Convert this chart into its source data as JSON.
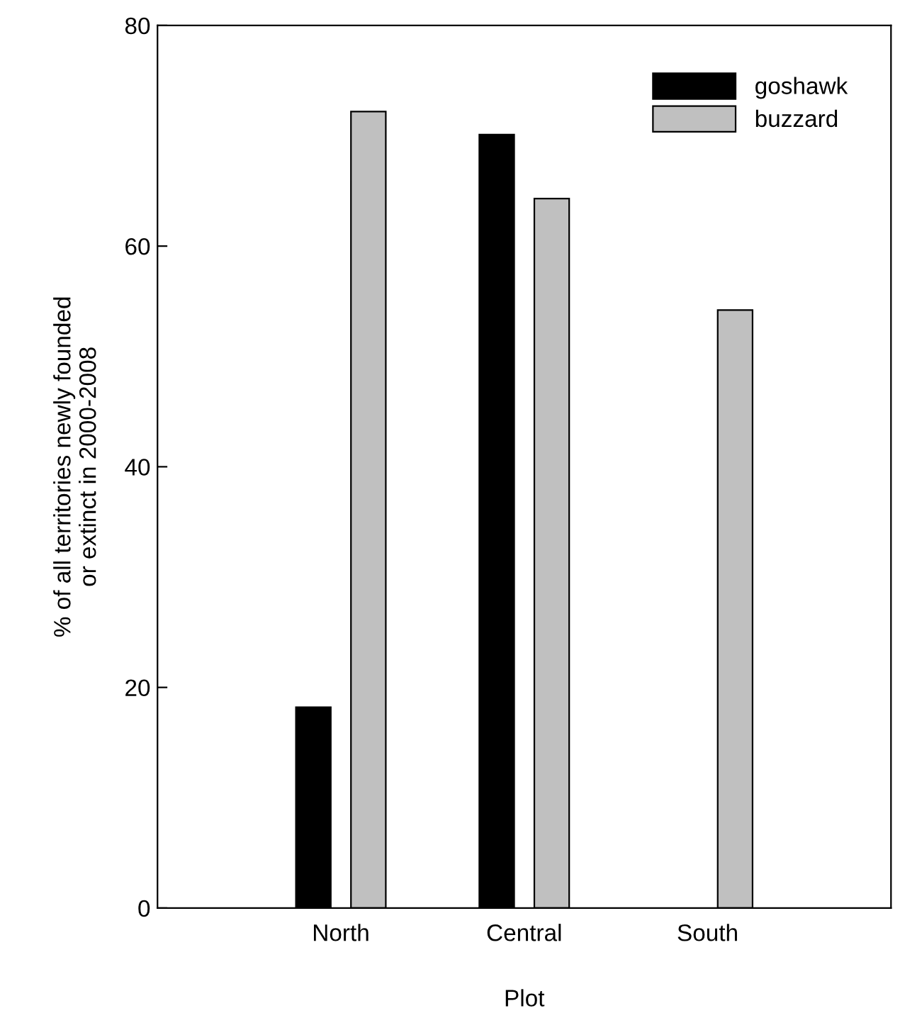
{
  "chart_data": {
    "type": "bar",
    "xlabel": "Plot",
    "ylabel": "% of all territories newly founded\nor extinct in 2000-2008",
    "categories": [
      "North",
      "Central",
      "South"
    ],
    "series": [
      {
        "name": "goshawk",
        "color": "#000000",
        "values": [
          18.2,
          70.1,
          null
        ]
      },
      {
        "name": "buzzard",
        "color": "#c0c0c0",
        "values": [
          72.2,
          64.3,
          54.2
        ]
      }
    ],
    "ylim": [
      0,
      80
    ],
    "yticks": [
      0,
      20,
      40,
      60,
      80
    ],
    "grid": false,
    "legend": "top right"
  }
}
